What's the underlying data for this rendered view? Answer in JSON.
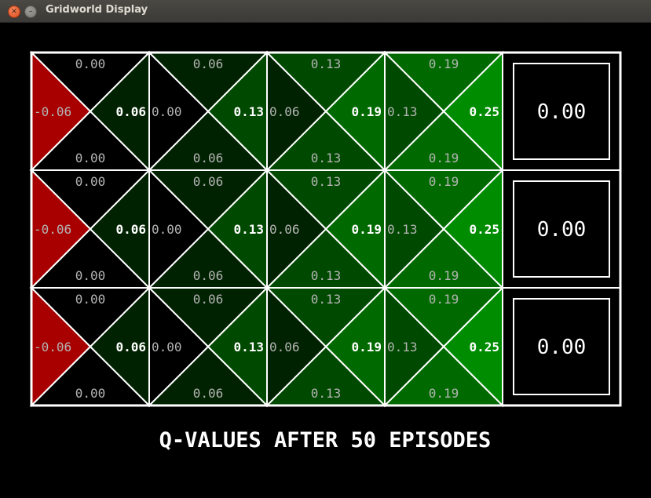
{
  "window": {
    "title": "Gridworld Display",
    "close_glyph": "×",
    "minimize_glyph": "–"
  },
  "colors": {
    "background": "#000000",
    "grid_line": "#ffffff",
    "negative": "#a80000",
    "positive_max": "#00a000"
  },
  "grid": {
    "rows": 3,
    "cols": 5,
    "q_cells": [
      {
        "row": 0,
        "col": 0,
        "north": "0.00",
        "south": "0.00",
        "west": "-0.06",
        "east": "0.06",
        "best": "east",
        "nv": 0.0,
        "sv": 0.0,
        "wv": -0.06,
        "ev": 0.06
      },
      {
        "row": 0,
        "col": 1,
        "north": "0.06",
        "south": "0.06",
        "west": "0.00",
        "east": "0.13",
        "best": "east",
        "nv": 0.06,
        "sv": 0.06,
        "wv": 0.0,
        "ev": 0.13
      },
      {
        "row": 0,
        "col": 2,
        "north": "0.13",
        "south": "0.13",
        "west": "0.06",
        "east": "0.19",
        "best": "east",
        "nv": 0.13,
        "sv": 0.13,
        "wv": 0.06,
        "ev": 0.19
      },
      {
        "row": 0,
        "col": 3,
        "north": "0.19",
        "south": "0.19",
        "west": "0.13",
        "east": "0.25",
        "best": "east",
        "nv": 0.19,
        "sv": 0.19,
        "wv": 0.13,
        "ev": 0.25
      },
      {
        "row": 1,
        "col": 0,
        "north": "0.00",
        "south": "0.00",
        "west": "-0.06",
        "east": "0.06",
        "best": "east",
        "nv": 0.0,
        "sv": 0.0,
        "wv": -0.06,
        "ev": 0.06
      },
      {
        "row": 1,
        "col": 1,
        "north": "0.06",
        "south": "0.06",
        "west": "0.00",
        "east": "0.13",
        "best": "east",
        "nv": 0.06,
        "sv": 0.06,
        "wv": 0.0,
        "ev": 0.13
      },
      {
        "row": 1,
        "col": 2,
        "north": "0.13",
        "south": "0.13",
        "west": "0.06",
        "east": "0.19",
        "best": "east",
        "nv": 0.13,
        "sv": 0.13,
        "wv": 0.06,
        "ev": 0.19
      },
      {
        "row": 1,
        "col": 3,
        "north": "0.19",
        "south": "0.19",
        "west": "0.13",
        "east": "0.25",
        "best": "east",
        "nv": 0.19,
        "sv": 0.19,
        "wv": 0.13,
        "ev": 0.25
      },
      {
        "row": 2,
        "col": 0,
        "north": "0.00",
        "south": "0.00",
        "west": "-0.06",
        "east": "0.06",
        "best": "east",
        "nv": 0.0,
        "sv": 0.0,
        "wv": -0.06,
        "ev": 0.06
      },
      {
        "row": 2,
        "col": 1,
        "north": "0.06",
        "south": "0.06",
        "west": "0.00",
        "east": "0.13",
        "best": "east",
        "nv": 0.06,
        "sv": 0.06,
        "wv": 0.0,
        "ev": 0.13
      },
      {
        "row": 2,
        "col": 2,
        "north": "0.13",
        "south": "0.13",
        "west": "0.06",
        "east": "0.19",
        "best": "east",
        "nv": 0.13,
        "sv": 0.13,
        "wv": 0.06,
        "ev": 0.19
      },
      {
        "row": 2,
        "col": 3,
        "north": "0.19",
        "south": "0.19",
        "west": "0.13",
        "east": "0.25",
        "best": "east",
        "nv": 0.19,
        "sv": 0.19,
        "wv": 0.13,
        "ev": 0.25
      }
    ],
    "terminal_cells": [
      {
        "row": 0,
        "col": 4,
        "value": "0.00"
      },
      {
        "row": 1,
        "col": 4,
        "value": "0.00"
      },
      {
        "row": 2,
        "col": 4,
        "value": "0.00"
      }
    ],
    "max_abs_value": 0.25
  },
  "caption": "Q-VALUES AFTER 50 EPISODES"
}
